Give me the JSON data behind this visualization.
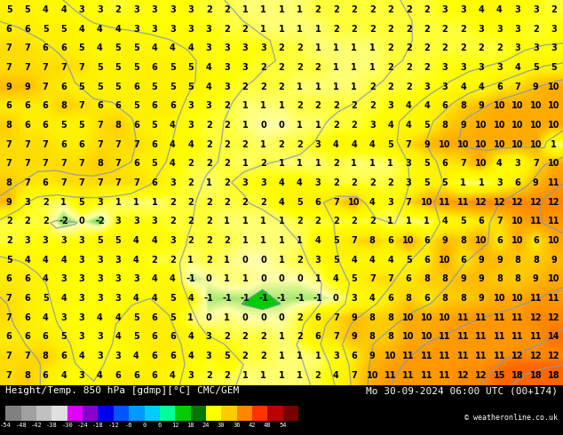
{
  "title_left": "Height/Temp. 850 hPa [gdmp][°C] CMC/GEM",
  "title_right": "Mo 30-09-2024 06:00 UTC (00+174)",
  "copyright": "© weatheronline.co.uk",
  "colorbar_values": [
    -54,
    -48,
    -42,
    -38,
    -30,
    -24,
    -18,
    -12,
    -6,
    0,
    6,
    12,
    18,
    24,
    30,
    36,
    42,
    48,
    54
  ],
  "colorbar_colors": [
    "#808080",
    "#a0a0a0",
    "#c0c0c0",
    "#e0e0e0",
    "#dd00ff",
    "#8800cc",
    "#0000ee",
    "#0055ff",
    "#0099ff",
    "#00ccff",
    "#00ff99",
    "#00cc00",
    "#007700",
    "#ffff00",
    "#ffcc00",
    "#ff8800",
    "#ff3300",
    "#bb0000",
    "#770000"
  ],
  "bg_color": "#ffff00",
  "number_color": "#000000",
  "contour_color": "#8899aa",
  "green_color": "#00cc00",
  "figsize": [
    6.34,
    4.9
  ],
  "dpi": 100,
  "numbers_fontsize": 7.0,
  "title_fontsize": 8.0,
  "grid": [
    [
      5,
      5,
      4,
      4,
      3,
      3,
      2,
      3,
      3,
      3,
      3,
      2,
      2,
      1,
      1,
      1,
      1,
      2,
      2,
      2,
      2,
      2,
      2,
      2,
      3,
      3,
      4,
      4,
      3,
      3,
      2
    ],
    [
      6,
      6,
      5,
      5,
      4,
      4,
      4,
      3,
      3,
      3,
      3,
      3,
      2,
      2,
      1,
      1,
      1,
      1,
      2,
      2,
      2,
      2,
      2,
      2,
      2,
      2,
      3,
      3,
      3,
      2,
      3
    ],
    [
      7,
      7,
      6,
      6,
      5,
      4,
      5,
      5,
      4,
      4,
      4,
      3,
      3,
      3,
      3,
      2,
      2,
      1,
      1,
      1,
      1,
      2,
      2,
      2,
      2,
      2,
      2,
      2,
      3,
      3,
      3
    ],
    [
      7,
      7,
      7,
      7,
      7,
      5,
      5,
      5,
      6,
      5,
      5,
      4,
      3,
      3,
      2,
      2,
      2,
      2,
      1,
      1,
      1,
      2,
      2,
      2,
      3,
      3,
      3,
      3,
      4,
      5,
      5
    ],
    [
      9,
      9,
      7,
      6,
      5,
      5,
      5,
      6,
      5,
      5,
      5,
      4,
      3,
      2,
      2,
      2,
      1,
      1,
      1,
      1,
      2,
      2,
      2,
      3,
      3,
      4,
      4,
      6,
      7,
      9,
      10
    ],
    [
      6,
      6,
      6,
      8,
      7,
      6,
      6,
      5,
      6,
      6,
      3,
      3,
      2,
      1,
      1,
      1,
      2,
      2,
      2,
      2,
      2,
      3,
      4,
      4,
      6,
      8,
      9,
      10,
      10,
      10,
      10
    ],
    [
      8,
      6,
      6,
      5,
      5,
      7,
      8,
      6,
      5,
      4,
      3,
      2,
      2,
      1,
      0,
      0,
      1,
      1,
      2,
      2,
      3,
      4,
      4,
      5,
      8,
      9,
      10,
      10,
      10,
      10,
      10
    ],
    [
      7,
      7,
      7,
      6,
      6,
      7,
      7,
      7,
      6,
      4,
      4,
      2,
      2,
      2,
      1,
      2,
      2,
      3,
      4,
      4,
      4,
      5,
      7,
      9,
      10,
      10,
      10,
      10,
      10,
      10,
      1
    ],
    [
      7,
      7,
      7,
      7,
      7,
      8,
      7,
      6,
      5,
      4,
      2,
      2,
      2,
      1,
      2,
      1,
      1,
      1,
      2,
      1,
      1,
      1,
      3,
      5,
      6,
      7,
      10,
      4,
      3,
      7,
      10
    ],
    [
      8,
      7,
      6,
      7,
      7,
      7,
      7,
      7,
      6,
      3,
      2,
      1,
      2,
      3,
      3,
      4,
      4,
      3,
      2,
      2,
      2,
      2,
      3,
      5,
      5,
      1,
      1,
      3,
      6,
      9,
      11
    ],
    [
      9,
      3,
      2,
      1,
      5,
      3,
      1,
      1,
      1,
      2,
      2,
      2,
      2,
      2,
      2,
      4,
      5,
      6,
      7,
      10,
      4,
      3,
      7,
      10,
      11,
      11,
      12,
      12,
      12,
      12,
      12
    ],
    [
      2,
      2,
      2,
      -2,
      0,
      -2,
      3,
      3,
      3,
      2,
      2,
      2,
      1,
      1,
      1,
      1,
      2,
      2,
      2,
      2,
      2,
      1,
      1,
      1,
      4,
      5,
      6,
      7,
      10,
      11,
      11
    ],
    [
      2,
      3,
      3,
      3,
      3,
      5,
      5,
      4,
      4,
      3,
      2,
      2,
      2,
      1,
      1,
      1,
      1,
      4,
      5,
      7,
      8,
      6,
      10,
      6,
      9,
      8,
      10,
      6,
      10,
      6,
      10
    ],
    [
      5,
      4,
      4,
      4,
      3,
      3,
      3,
      4,
      2,
      2,
      1,
      2,
      1,
      0,
      0,
      1,
      2,
      3,
      5,
      4,
      4,
      4,
      5,
      6,
      10,
      6,
      9,
      9,
      8,
      8,
      9
    ],
    [
      6,
      6,
      4,
      3,
      3,
      3,
      3,
      3,
      4,
      4,
      -1,
      0,
      1,
      1,
      0,
      0,
      0,
      1,
      4,
      5,
      7,
      7,
      6,
      8,
      8,
      9,
      9,
      8,
      8,
      9,
      10
    ],
    [
      7,
      6,
      5,
      4,
      3,
      3,
      3,
      4,
      4,
      5,
      4,
      -1,
      -1,
      -1,
      -1,
      -1,
      -1,
      -1,
      0,
      3,
      4,
      6,
      8,
      6,
      8,
      8,
      9,
      10,
      10,
      11,
      11
    ],
    [
      7,
      6,
      4,
      3,
      3,
      4,
      4,
      5,
      6,
      5,
      1,
      0,
      1,
      0,
      0,
      0,
      2,
      6,
      7,
      9,
      8,
      8,
      10,
      10,
      10,
      11,
      11,
      11,
      11,
      12,
      12
    ],
    [
      6,
      6,
      6,
      5,
      3,
      3,
      4,
      5,
      6,
      6,
      4,
      3,
      2,
      2,
      2,
      1,
      2,
      6,
      7,
      9,
      8,
      8,
      10,
      10,
      11,
      11,
      11,
      11,
      11,
      11,
      14
    ],
    [
      7,
      7,
      8,
      6,
      4,
      3,
      3,
      4,
      6,
      6,
      4,
      3,
      5,
      2,
      2,
      1,
      1,
      1,
      3,
      6,
      9,
      10,
      11,
      11,
      11,
      11,
      11,
      11,
      12,
      12,
      12
    ],
    [
      7,
      8,
      6,
      4,
      3,
      4,
      6,
      6,
      6,
      4,
      3,
      2,
      2,
      1,
      1,
      1,
      1,
      2,
      4,
      7,
      10,
      11,
      11,
      11,
      11,
      12,
      12,
      15,
      18,
      18,
      18
    ]
  ],
  "contour_lines": [
    {
      "x": [
        0.0,
        0.05,
        0.12,
        0.18,
        0.25,
        0.32,
        0.38,
        0.45,
        0.5,
        0.55,
        0.62,
        0.7,
        0.78,
        0.85,
        0.92,
        1.0
      ],
      "y": [
        0.95,
        0.93,
        0.91,
        0.93,
        0.91,
        0.9,
        0.88,
        0.87,
        0.86,
        0.88,
        0.87,
        0.86,
        0.88,
        0.9,
        0.92,
        0.95
      ]
    },
    {
      "x": [
        0.0,
        0.06,
        0.14,
        0.2,
        0.28,
        0.35,
        0.42,
        0.5,
        0.58,
        0.65,
        0.72,
        0.8,
        0.88,
        0.95,
        1.0
      ],
      "y": [
        0.82,
        0.8,
        0.79,
        0.78,
        0.76,
        0.75,
        0.73,
        0.72,
        0.7,
        0.68,
        0.67,
        0.68,
        0.7,
        0.72,
        0.74
      ]
    },
    {
      "x": [
        0.0,
        0.08,
        0.16,
        0.24,
        0.32,
        0.38,
        0.44,
        0.5,
        0.56,
        0.62,
        0.68,
        0.75,
        0.82,
        0.9,
        1.0
      ],
      "y": [
        0.68,
        0.66,
        0.65,
        0.63,
        0.62,
        0.6,
        0.58,
        0.55,
        0.52,
        0.5,
        0.52,
        0.54,
        0.56,
        0.58,
        0.6
      ]
    },
    {
      "x": [
        0.0,
        0.1,
        0.18,
        0.26,
        0.34,
        0.4,
        0.46,
        0.52,
        0.58,
        0.65,
        0.72,
        0.8,
        0.88,
        0.95,
        1.0
      ],
      "y": [
        0.52,
        0.5,
        0.48,
        0.46,
        0.44,
        0.42,
        0.4,
        0.38,
        0.36,
        0.38,
        0.4,
        0.42,
        0.44,
        0.46,
        0.48
      ]
    },
    {
      "x": [
        0.0,
        0.08,
        0.16,
        0.24,
        0.32,
        0.4,
        0.46,
        0.52,
        0.58,
        0.64,
        0.7,
        0.76,
        0.82,
        0.9,
        1.0
      ],
      "y": [
        0.38,
        0.36,
        0.34,
        0.32,
        0.3,
        0.28,
        0.26,
        0.24,
        0.22,
        0.24,
        0.26,
        0.28,
        0.3,
        0.32,
        0.34
      ]
    },
    {
      "x": [
        0.0,
        0.1,
        0.18,
        0.26,
        0.34,
        0.4,
        0.46,
        0.52,
        0.58,
        0.64,
        0.7,
        0.76,
        0.82,
        0.88,
        0.95,
        1.0
      ],
      "y": [
        0.22,
        0.2,
        0.19,
        0.18,
        0.16,
        0.15,
        0.14,
        0.12,
        0.1,
        0.12,
        0.14,
        0.16,
        0.18,
        0.2,
        0.22,
        0.24
      ]
    }
  ]
}
